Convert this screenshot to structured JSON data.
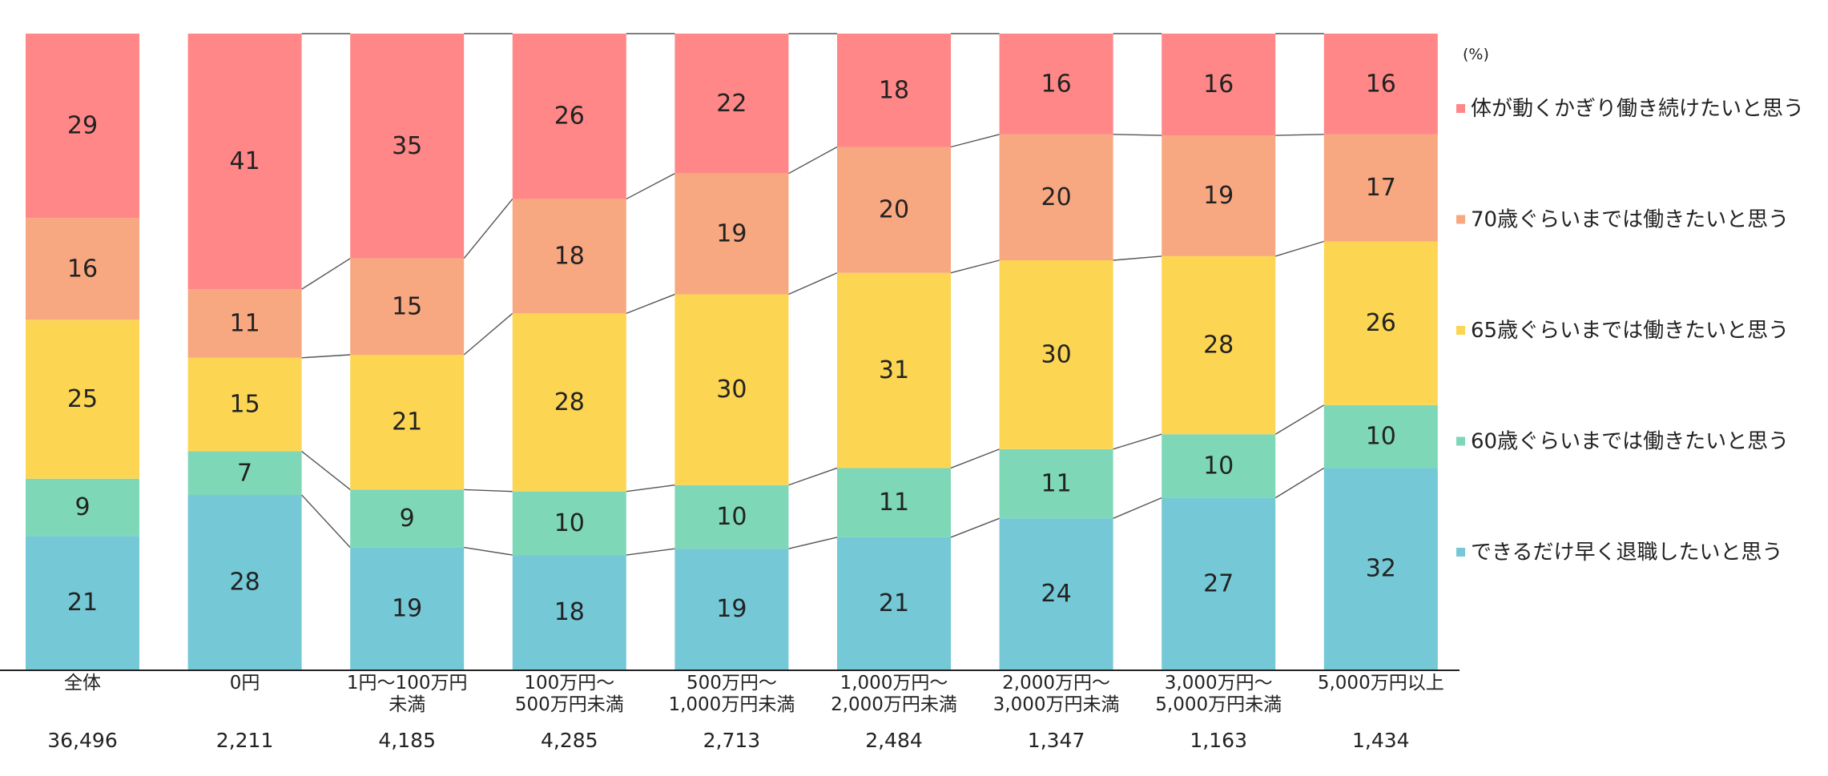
{
  "chart_data": {
    "type": "bar",
    "stacked": true,
    "normalized": true,
    "unit": "(%)",
    "title": "",
    "xlabel": "",
    "ylabel": "",
    "ylim": [
      0,
      100
    ],
    "grid": false,
    "legend_position": "right",
    "connector_lines": true,
    "categories": [
      {
        "label": "全体",
        "n": "36,496"
      },
      {
        "label": "0円",
        "n": "2,211"
      },
      {
        "label": "1円～100万円\n未満",
        "n": "4,185"
      },
      {
        "label": "100万円～\n500万円未満",
        "n": "4,285"
      },
      {
        "label": "500万円～\n1,000万円未満",
        "n": "2,713"
      },
      {
        "label": "1,000万円～\n2,000万円未満",
        "n": "2,484"
      },
      {
        "label": "2,000万円～\n3,000万円未満",
        "n": "1,347"
      },
      {
        "label": "3,000万円～\n5,000万円未満",
        "n": "1,163"
      },
      {
        "label": "5,000万円以上",
        "n": "1,434"
      }
    ],
    "series": [
      {
        "name": "できるだけ早く退職したいと思う",
        "color": "#75C8D6",
        "values": [
          21,
          28,
          19,
          18,
          19,
          21,
          24,
          27,
          32
        ]
      },
      {
        "name": "60歳ぐらいまでは働きたいと思う",
        "color": "#7ED8B8",
        "values": [
          9,
          7,
          9,
          10,
          10,
          11,
          11,
          10,
          10
        ]
      },
      {
        "name": "65歳ぐらいまでは働きたいと思う",
        "color": "#FCD553",
        "values": [
          25,
          15,
          21,
          28,
          30,
          31,
          30,
          28,
          26
        ]
      },
      {
        "name": "70歳ぐらいまでは働きたいと思う",
        "color": "#F8A881",
        "values": [
          16,
          11,
          15,
          18,
          19,
          20,
          20,
          19,
          17
        ]
      },
      {
        "name": "体が動くかぎり働き続けたいと思う",
        "color": "#FF8787",
        "values": [
          29,
          41,
          35,
          26,
          22,
          18,
          16,
          16,
          16
        ]
      }
    ]
  }
}
